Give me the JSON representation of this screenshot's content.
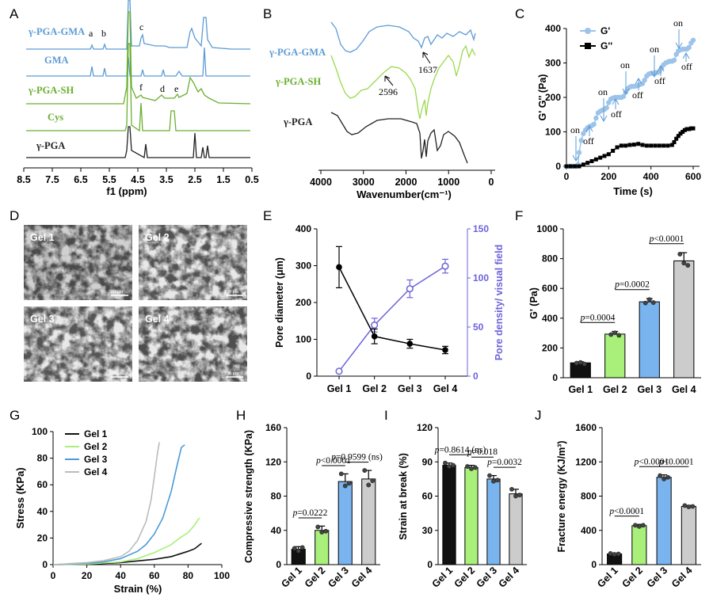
{
  "colors": {
    "gma": "#5b9bd5",
    "sh": "#6aaf2e",
    "pga": "#222222",
    "gline": "#9cc3ea",
    "purple": "#6c63d9",
    "gel1": "#111111",
    "gel2": "#a8f07a",
    "gel3": "#7ab4ee",
    "gel4": "#cccccc",
    "gel4line": "#bbbbbb",
    "sem_bg": "#4a4a4a"
  },
  "chart_data": [
    {
      "panel": "A",
      "type": "line",
      "xlabel": "f1 (ppm)",
      "xlim": [
        8.5,
        0.5
      ],
      "xticks": [
        "8.5",
        "7.5",
        "6.5",
        "5.5",
        "4.5",
        "3.5",
        "2.5",
        "1.5",
        "0.5"
      ],
      "series": [
        {
          "name": "γ-PGA-GMA",
          "peaks": [
            "a",
            "b",
            "c"
          ]
        },
        {
          "name": "GMA"
        },
        {
          "name": "γ-PGA-SH",
          "peaks": [
            "f",
            "d",
            "e"
          ]
        },
        {
          "name": "Cys"
        },
        {
          "name": "γ-PGA"
        }
      ]
    },
    {
      "panel": "B",
      "type": "line",
      "xlabel": "Wavenumber(cm⁻¹)",
      "xlim": [
        4000,
        0
      ],
      "xticks": [
        "4000",
        "3000",
        "2000",
        "1000",
        "0"
      ],
      "series": [
        {
          "name": "γ-PGA-GMA"
        },
        {
          "name": "γ-PGA-SH"
        },
        {
          "name": "γ-PGA"
        }
      ],
      "annotations": [
        "1637",
        "2596"
      ]
    },
    {
      "panel": "C",
      "type": "line",
      "xlabel": "Time (s)",
      "ylabel": "G' G'' (Pa)",
      "xlim": [
        0,
        600
      ],
      "ylim": [
        0,
        400
      ],
      "xticks": [
        "0",
        "200",
        "400",
        "600"
      ],
      "yticks": [
        "0",
        "100",
        "200",
        "300",
        "400"
      ],
      "series": [
        {
          "name": "G'",
          "x": [
            0,
            10,
            20,
            30,
            40,
            50,
            55,
            60,
            70,
            80,
            90,
            100,
            110,
            120,
            130,
            140,
            150,
            160,
            170,
            180,
            190,
            200,
            210,
            220,
            230,
            240,
            250,
            260,
            270,
            280,
            290,
            300,
            310,
            320,
            330,
            340,
            350,
            360,
            370,
            380,
            390,
            400,
            410,
            420,
            430,
            440,
            450,
            460,
            470,
            480,
            490,
            500,
            510,
            520,
            530,
            540,
            550,
            560,
            570,
            580,
            590,
            600
          ],
          "y": [
            0,
            0,
            0,
            0,
            0,
            0,
            5,
            40,
            75,
            95,
            105,
            112,
            116,
            118,
            122,
            140,
            155,
            160,
            163,
            165,
            170,
            185,
            195,
            198,
            200,
            200,
            200,
            200,
            203,
            215,
            225,
            230,
            232,
            232,
            233,
            235,
            238,
            240,
            250,
            262,
            268,
            270,
            270,
            272,
            272,
            275,
            285,
            295,
            300,
            303,
            305,
            305,
            308,
            325,
            335,
            338,
            340,
            340,
            340,
            345,
            358,
            366
          ]
        },
        {
          "name": "G''",
          "x": [
            0,
            20,
            40,
            60,
            80,
            100,
            120,
            140,
            160,
            180,
            200,
            220,
            240,
            260,
            280,
            300,
            320,
            340,
            360,
            380,
            400,
            420,
            440,
            460,
            480,
            500,
            510,
            520,
            530,
            540,
            550,
            560,
            570,
            580,
            590,
            600
          ],
          "y": [
            0,
            0,
            0,
            0,
            5,
            10,
            15,
            20,
            25,
            30,
            35,
            45,
            55,
            60,
            60,
            62,
            63,
            65,
            62,
            60,
            60,
            60,
            60,
            60,
            60,
            62,
            70,
            80,
            88,
            95,
            100,
            105,
            108,
            108,
            110,
            110
          ]
        }
      ],
      "annotations": [
        "on",
        "off",
        "on",
        "off",
        "on",
        "off",
        "on",
        "off",
        "on",
        "off",
        "on"
      ]
    },
    {
      "panel": "E",
      "type": "line",
      "categories": [
        "Gel 1",
        "Gel 2",
        "Gel 3",
        "Gel 4"
      ],
      "ylabel": "Pore diameter (μm)",
      "ylim": [
        0,
        400
      ],
      "yticks": [
        "0",
        "100",
        "200",
        "300",
        "400"
      ],
      "y2label": "Pore density/ visual field",
      "y2lim": [
        0,
        150
      ],
      "y2ticks": [
        "0",
        "50",
        "100",
        "150"
      ],
      "series": [
        {
          "name": "Pore diameter",
          "values": [
            296,
            108,
            88,
            71
          ],
          "err": [
            56,
            20,
            12,
            10
          ]
        },
        {
          "name": "Pore density",
          "axis": "right",
          "values": [
            5,
            52,
            89,
            112
          ],
          "err": [
            0,
            7,
            9,
            7
          ]
        }
      ]
    },
    {
      "panel": "F",
      "type": "bar",
      "categories": [
        "Gel 1",
        "Gel 2",
        "Gel 3",
        "Gel 4"
      ],
      "ylabel": "G' (Pa)",
      "ylim": [
        0,
        1000
      ],
      "yticks": [
        "0",
        "200",
        "400",
        "600",
        "800",
        "1000"
      ],
      "values": [
        100,
        293,
        510,
        785
      ],
      "err": [
        8,
        18,
        22,
        55
      ],
      "points": [
        [
          98,
          103,
          92
        ],
        [
          290,
          302,
          285
        ],
        [
          502,
          525,
          505
        ],
        [
          830,
          770,
          755
        ]
      ],
      "annotations": [
        {
          "label": "p=0.0004",
          "from": 0,
          "to": 1
        },
        {
          "label": "p=0.0002",
          "from": 1,
          "to": 2
        },
        {
          "label": "p<0.0001",
          "from": 2,
          "to": 3
        }
      ]
    },
    {
      "panel": "G",
      "type": "line",
      "xlabel": "Strain (%)",
      "ylabel": "Stress (KPa)",
      "xlim": [
        0,
        100
      ],
      "ylim": [
        0,
        100
      ],
      "xticks": [
        "0",
        "20",
        "40",
        "60",
        "80",
        "100"
      ],
      "yticks": [
        "0",
        "20",
        "40",
        "60",
        "80",
        "100"
      ],
      "series": [
        {
          "name": "Gel 1",
          "x": [
            0,
            20,
            40,
            60,
            70,
            75,
            80,
            84,
            87,
            88
          ],
          "y": [
            0,
            0.3,
            1.5,
            4,
            6,
            8,
            10,
            12,
            15,
            16
          ]
        },
        {
          "name": "Gel 2",
          "x": [
            0,
            20,
            40,
            50,
            60,
            70,
            75,
            80,
            84,
            86,
            87
          ],
          "y": [
            0,
            0.5,
            2,
            4.5,
            9,
            15,
            20,
            24,
            30,
            34,
            35
          ]
        },
        {
          "name": "Gel 3",
          "x": [
            0,
            20,
            30,
            40,
            50,
            55,
            60,
            65,
            70,
            73,
            76,
            78
          ],
          "y": [
            0,
            1,
            2,
            4.5,
            10,
            15,
            23,
            35,
            55,
            72,
            88,
            90
          ]
        },
        {
          "name": "Gel 4",
          "x": [
            0,
            20,
            30,
            40,
            45,
            50,
            55,
            58,
            60,
            62,
            63
          ],
          "y": [
            0,
            1.5,
            3,
            6,
            10,
            18,
            32,
            48,
            66,
            85,
            92
          ]
        }
      ]
    },
    {
      "panel": "H",
      "type": "bar",
      "categories": [
        "Gel 1",
        "Gel 2",
        "Gel 3",
        "Gel 4"
      ],
      "ylabel": "Compressive strength (KPa)",
      "ylim": [
        0,
        160
      ],
      "yticks": [
        "0",
        "40",
        "80",
        "120",
        "160"
      ],
      "values": [
        18,
        40,
        97,
        100
      ],
      "err": [
        3,
        5,
        9,
        10
      ],
      "points": [
        [
          19,
          16,
          20
        ],
        [
          44,
          38,
          39
        ],
        [
          106,
          92,
          95
        ],
        [
          110,
          93,
          98
        ]
      ],
      "annotations": [
        {
          "label": "p=0.0222",
          "from": 0,
          "to": 1
        },
        {
          "label": "p<0.0001",
          "from": 1,
          "to": 2
        },
        {
          "label": "p=0.9599 (ns)",
          "from": 2,
          "to": 3
        }
      ]
    },
    {
      "panel": "I",
      "type": "bar",
      "categories": [
        "Gel 1",
        "Gel 2",
        "Gel 3",
        "Gel 4"
      ],
      "ylabel": "Strain at break (%)",
      "ylim": [
        0,
        120
      ],
      "yticks": [
        "0",
        "30",
        "60",
        "90",
        "120"
      ],
      "values": [
        87,
        85,
        75,
        62
      ],
      "err": [
        2,
        2,
        3,
        4
      ],
      "points": [
        [
          89,
          86,
          87
        ],
        [
          86,
          84,
          85
        ],
        [
          78,
          73,
          74
        ],
        [
          66,
          60,
          61
        ]
      ],
      "annotations": [
        {
          "label": "p=0.8614 (ns)",
          "from": 0,
          "to": 1
        },
        {
          "label": "p=0.018",
          "from": 1,
          "to": 2
        },
        {
          "label": "p=0.0032",
          "from": 2,
          "to": 3
        }
      ]
    },
    {
      "panel": "J",
      "type": "bar",
      "categories": [
        "Gel 1",
        "Gel 2",
        "Gel 3",
        "Gel 4"
      ],
      "ylabel": "Fracture energy (KJ/m³)",
      "ylim": [
        0,
        1600
      ],
      "yticks": [
        "0",
        "400",
        "800",
        "1200",
        "1600"
      ],
      "values": [
        125,
        455,
        1020,
        680
      ],
      "err": [
        8,
        15,
        28,
        12
      ],
      "points": [
        [
          130,
          120,
          125
        ],
        [
          460,
          445,
          460
        ],
        [
          1040,
          1000,
          1020
        ],
        [
          690,
          675,
          680
        ]
      ],
      "annotations": [
        {
          "label": "p<0.0001",
          "from": 0,
          "to": 1
        },
        {
          "label": "p<0.0001",
          "from": 1,
          "to": 2
        },
        {
          "label": "p<0.0001",
          "from": 2,
          "to": 3
        }
      ]
    },
    {
      "panel": "D",
      "type": "image",
      "images": [
        {
          "label": "Gel 1",
          "scale": "500 μm"
        },
        {
          "label": "Gel 2",
          "scale": "100 μm"
        },
        {
          "label": "Gel 3",
          "scale": "100 μm"
        },
        {
          "label": "Gel 4",
          "scale": "100 μm"
        }
      ]
    }
  ],
  "panels": {
    "A": "A",
    "B": "B",
    "C": "C",
    "D": "D",
    "E": "E",
    "F": "F",
    "G": "G",
    "H": "H",
    "I": "I",
    "J": "J"
  }
}
